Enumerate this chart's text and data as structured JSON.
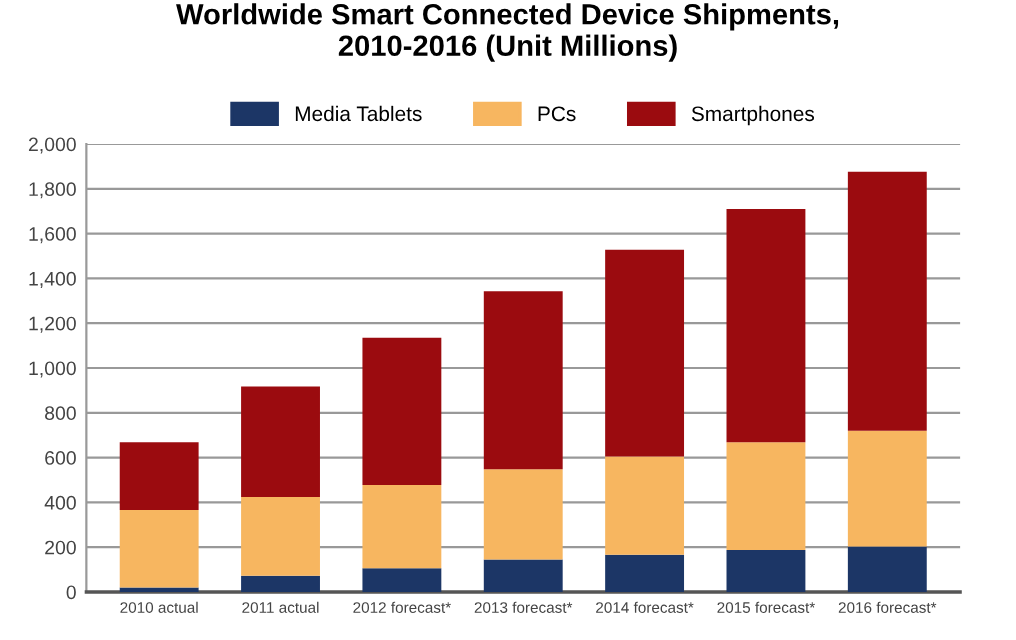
{
  "chart_data": {
    "type": "bar",
    "title": "Worldwide Smart Connected Device Shipments,\n2010-2016 (Unit Millions)",
    "categories": [
      "2010 actual",
      "2011 actual",
      "2012 forecast*",
      "2013 forecast*",
      "2014 forecast*",
      "2015 forecast*",
      "2016 forecast*"
    ],
    "stacked": true,
    "series": [
      {
        "name": "Media Tablets",
        "color": "#1c3666",
        "values": [
          20,
          73,
          106,
          145,
          166,
          188,
          203
        ]
      },
      {
        "name": "PCs",
        "color": "#f7b660",
        "values": [
          346,
          351,
          372,
          403,
          439,
          481,
          517
        ]
      },
      {
        "name": "Smartphones",
        "color": "#9b0b0f",
        "values": [
          303,
          493,
          657,
          795,
          923,
          1041,
          1156
        ]
      }
    ],
    "ylim": [
      0,
      2000
    ],
    "yticks": [
      0,
      {
        "value": 200,
        "label": "200"
      },
      {
        "value": 400,
        "label": "400"
      },
      {
        "value": 600,
        "label": "600"
      },
      {
        "value": 800,
        "label": "800"
      },
      {
        "value": 1000,
        "label": "1,000"
      },
      {
        "value": 1200,
        "label": "1,200"
      },
      {
        "value": 1400,
        "label": "1,400"
      },
      {
        "value": 1600,
        "label": "1,600"
      },
      {
        "value": 1800,
        "label": "1,800"
      },
      {
        "value": 2000,
        "label": "2,000"
      }
    ],
    "grid": "y",
    "legend": "top"
  }
}
